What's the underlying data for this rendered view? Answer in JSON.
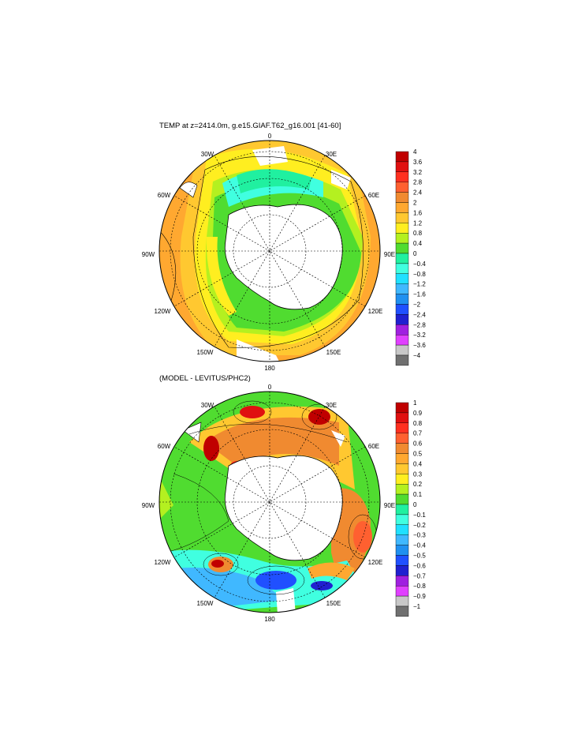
{
  "panel1": {
    "title": "TEMP at z=2414.0m, g.e15.GIAF.T62_g16.001 [41-60]",
    "lon_labels": [
      "0",
      "30E",
      "60E",
      "90E",
      "120E",
      "150E",
      "180",
      "150W",
      "120W",
      "90W",
      "60W",
      "30W"
    ],
    "colorbar": {
      "labels": [
        "4",
        "3.6",
        "3.2",
        "2.8",
        "2.4",
        "2",
        "1.6",
        "1.2",
        "0.8",
        "0.4",
        "0",
        "-0.4",
        "-0.8",
        "-1.2",
        "-1.6",
        "-2",
        "-2.4",
        "-2.8",
        "-3.2",
        "-3.6",
        "-4"
      ],
      "colors": [
        "#c00000",
        "#e01010",
        "#ff3020",
        "#ff6030",
        "#f08a30",
        "#ffa830",
        "#ffc830",
        "#ffee20",
        "#b4f020",
        "#50dc30",
        "#20f0a0",
        "#40ffe0",
        "#20e0ff",
        "#40b8ff",
        "#2090f0",
        "#2050ff",
        "#2020d0",
        "#a020e0",
        "#e040ff",
        "#c8c8c8",
        "#707070"
      ]
    }
  },
  "panel2": {
    "title": "(MODEL - LEVITUS/PHC2)",
    "lon_labels": [
      "0",
      "30E",
      "60E",
      "90E",
      "120E",
      "150E",
      "180",
      "150W",
      "120W",
      "90W",
      "60W",
      "30W"
    ],
    "colorbar": {
      "labels": [
        "1",
        "0.9",
        "0.8",
        "0.7",
        "0.6",
        "0.5",
        "0.4",
        "0.3",
        "0.2",
        "0.1",
        "0",
        "-0.1",
        "-0.2",
        "-0.3",
        "-0.4",
        "-0.5",
        "-0.6",
        "-0.7",
        "-0.8",
        "-0.9",
        "-1"
      ],
      "colors": [
        "#c00000",
        "#e01010",
        "#ff3020",
        "#ff6030",
        "#f08a30",
        "#ffa830",
        "#ffc830",
        "#ffee20",
        "#b4f020",
        "#50dc30",
        "#20f0a0",
        "#40ffe0",
        "#20e0ff",
        "#40b8ff",
        "#2090f0",
        "#2050ff",
        "#2020d0",
        "#a020e0",
        "#e040ff",
        "#c8c8c8",
        "#707070"
      ]
    }
  }
}
